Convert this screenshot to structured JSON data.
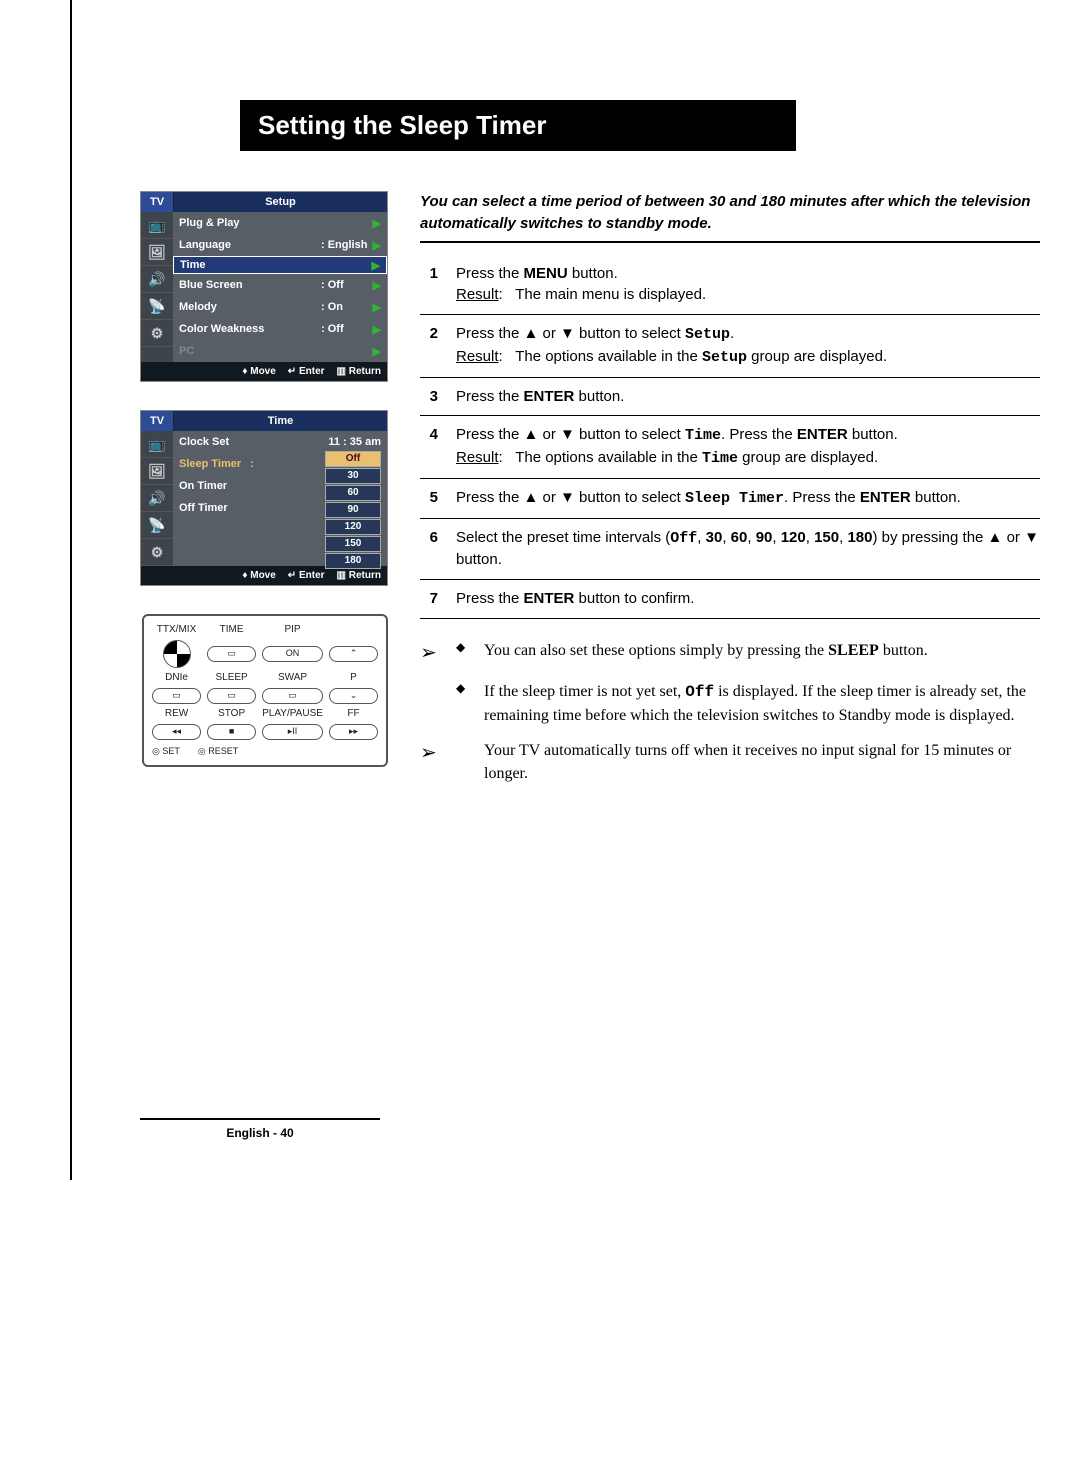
{
  "title": "Setting the Sleep Timer",
  "intro": "You can select a time period of between 30 and 180 minutes after which the television automatically switches to standby mode.",
  "osd_menus": {
    "colors": {
      "header_bg": "#1b2f5f",
      "tv_bg": "#2d4b96",
      "body_bg": "#585e66",
      "highlight_bg": "#223a78",
      "arrow_color": "#2fb52f",
      "footer_bg": "#101820",
      "timer_opt_bg": "#273758",
      "timer_opt_hl_bg": "#e8c070"
    },
    "setup": {
      "tv_label": "TV",
      "title": "Setup",
      "rows": [
        {
          "label": "Plug & Play",
          "val": "",
          "arrow": true
        },
        {
          "label": "Language",
          "val": ": English",
          "arrow": true
        },
        {
          "label": "Time",
          "val": "",
          "arrow": true,
          "hl": true
        },
        {
          "label": "Blue Screen",
          "val": ": Off",
          "arrow": true
        },
        {
          "label": "Melody",
          "val": ": On",
          "arrow": true
        },
        {
          "label": "Color Weakness",
          "val": ": Off",
          "arrow": true
        },
        {
          "label": "PC",
          "val": "",
          "arrow": true,
          "dim": true
        }
      ],
      "footer": {
        "move": "Move",
        "enter": "Enter",
        "ret": "Return"
      }
    },
    "time": {
      "tv_label": "TV",
      "title": "Time",
      "clock_row": {
        "label": "Clock Set",
        "val": "11 : 35  am"
      },
      "sleep_label": "Sleep Timer",
      "options": [
        "Off",
        "30",
        "60",
        "90",
        "120",
        "150",
        "180"
      ],
      "selected_option": "Off",
      "on_timer": "On Timer",
      "off_timer": "Off Timer",
      "footer": {
        "move": "Move",
        "enter": "Enter",
        "ret": "Return"
      }
    }
  },
  "remote": {
    "row1": [
      "TTX/MIX",
      "TIME",
      "PIP",
      ""
    ],
    "btn_on": "ON",
    "row2": [
      "DNIe",
      "SLEEP",
      "SWAP",
      "P"
    ],
    "row3": [
      "REW",
      "STOP",
      "PLAY/PAUSE",
      "FF"
    ],
    "row3_sym": [
      "◂◂",
      "■",
      "▸II",
      "▸▸"
    ],
    "set": "SET",
    "reset": "RESET"
  },
  "steps": [
    {
      "n": "1",
      "body": "Press the <b>MENU</b> button.",
      "result": "The main menu is displayed."
    },
    {
      "n": "2",
      "body": "Press the ▲ or ▼ button to select <span class='mono'>Setup</span>.",
      "result": "The options available in the <span class='mono'>Setup</span> group are displayed."
    },
    {
      "n": "3",
      "body": "Press the <b>ENTER</b> button."
    },
    {
      "n": "4",
      "body": "Press the ▲ or ▼ button to select <span class='mono'>Time</span>. Press the <b>ENTER</b> button.",
      "result": "The options available in the <span class='mono'>Time</span> group are displayed."
    },
    {
      "n": "5",
      "body": "Press the ▲ or ▼ button to select <span class='mono'>Sleep Timer</span>. Press the <b>ENTER</b> button."
    },
    {
      "n": "6",
      "body": "Select the preset time intervals (<span class='mono'>Off</span>, <b>30</b>, <b>60</b>, <b>90</b>, <b>120</b>, <b>150</b>, <b>180</b>) by pressing the ▲ or ▼ button."
    },
    {
      "n": "7",
      "body": "Press the <b>ENTER</b> button to confirm."
    }
  ],
  "notes": [
    {
      "arrow": true,
      "diamond": true,
      "text": "You can also set these options simply by pressing the <b>SLEEP</b> button."
    },
    {
      "arrow": false,
      "diamond": true,
      "text": "If the sleep timer is not yet set, <span class='mono'>Off</span> is displayed. If the sleep timer is already set, the remaining time before which the television switches to Standby mode is displayed."
    },
    {
      "arrow": true,
      "diamond": false,
      "text": "Your TV automatically turns off when it receives no input signal for 15 minutes or longer."
    }
  ],
  "footer": "English - 40"
}
